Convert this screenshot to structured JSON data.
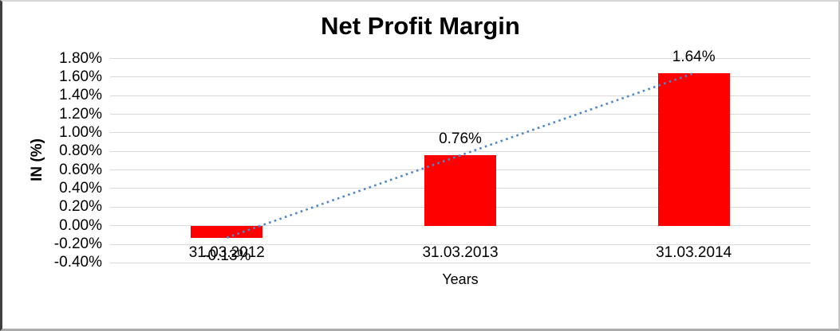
{
  "chart_data": {
    "type": "bar",
    "title": "Net Profit Margin",
    "xlabel": "Years",
    "ylabel": "IN (%)",
    "categories": [
      "31.03.2012",
      "31.03.2013",
      "31.03.2014"
    ],
    "series": [
      {
        "name": "Net Profit Margin",
        "values": [
          -0.13,
          0.76,
          1.64
        ]
      }
    ],
    "data_labels": [
      "-0.13%",
      "0.76%",
      "1.64%"
    ],
    "y_ticks": [
      "1.80%",
      "1.60%",
      "1.40%",
      "1.20%",
      "1.00%",
      "0.80%",
      "0.60%",
      "0.40%",
      "0.20%",
      "0.00%",
      "-0.20%",
      "-0.40%"
    ],
    "ylim": [
      -0.4,
      1.8
    ],
    "y_step": 0.2,
    "y_unit": "%",
    "grid": true,
    "legend": "none",
    "trendline": {
      "type": "linear",
      "style": "dotted"
    },
    "colors": {
      "bar": "#ff0000",
      "trendline": "#4e87c8",
      "gridline": "#d9d9d9",
      "text": "#000000"
    }
  }
}
